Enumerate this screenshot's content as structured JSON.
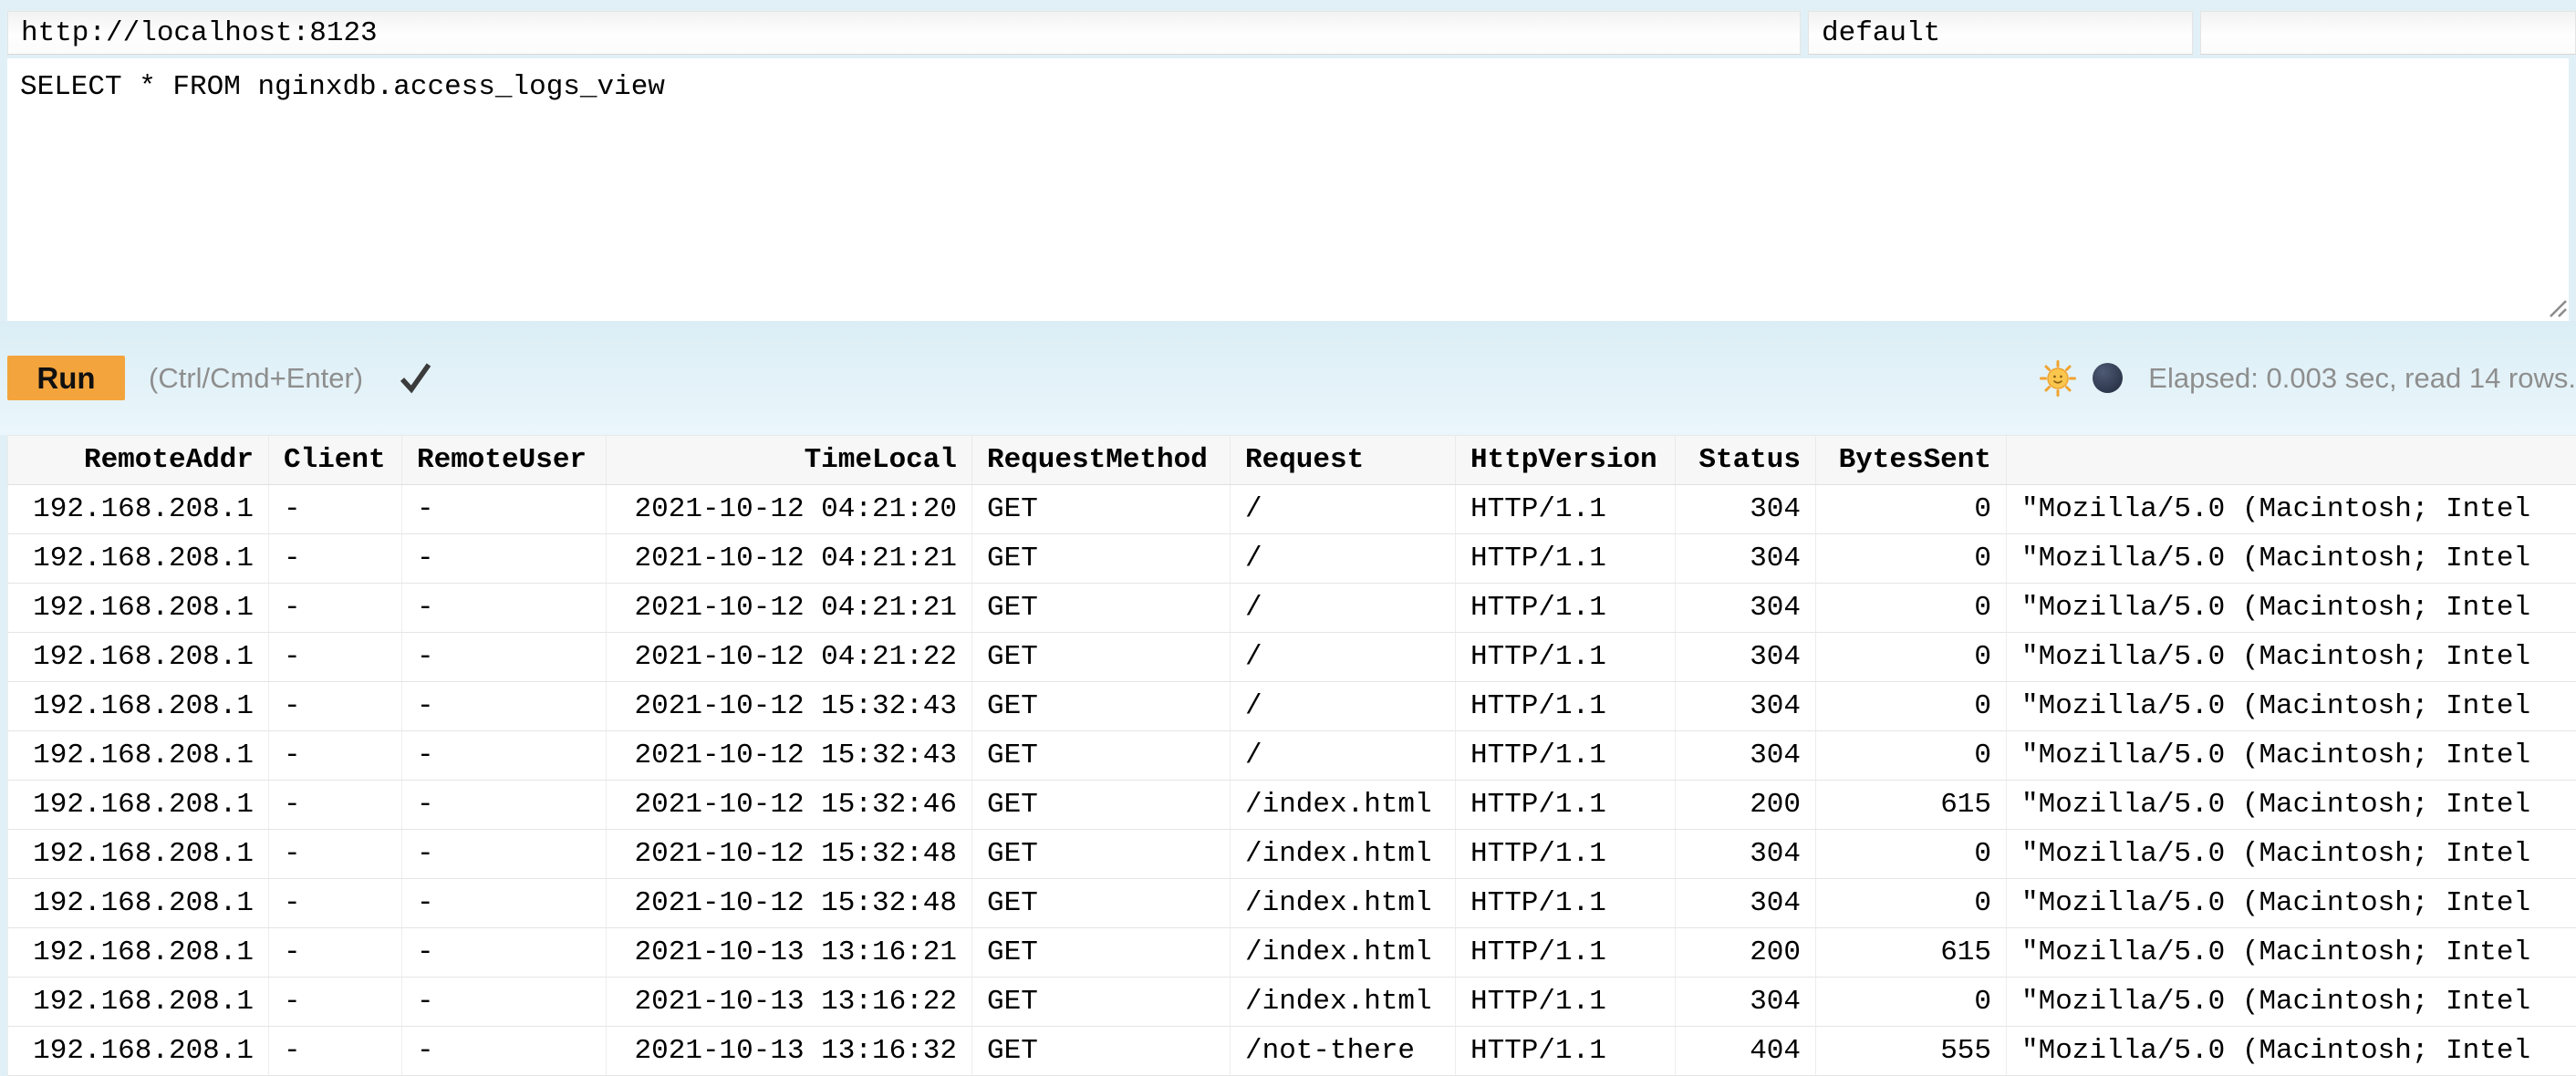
{
  "connection": {
    "url": "http://localhost:8123",
    "user": "default",
    "password": ""
  },
  "query": "SELECT * FROM nginxdb.access_logs_view",
  "run_bar": {
    "run_label": "Run",
    "shortcut_hint": "(Ctrl/Cmd+Enter)",
    "status_icon": "check-mark",
    "stats_text": "Elapsed: 0.003 sec, read 14 rows.",
    "theme_icons": {
      "light": "sun-with-face-emoji",
      "dark": "new-moon-emoji"
    }
  },
  "colors": {
    "page_background": "#E1F0F6",
    "run_button": "#F3A43C",
    "muted_text": "#8E8E8E",
    "table_header_bg": "#F7F7F7",
    "check_mark": "#3B3B3B"
  },
  "results_table": {
    "columns": [
      {
        "label": "RemoteAddr",
        "align": "right"
      },
      {
        "label": "Client",
        "align": "left"
      },
      {
        "label": "RemoteUser",
        "align": "left"
      },
      {
        "label": "TimeLocal",
        "align": "right"
      },
      {
        "label": "RequestMethod",
        "align": "left"
      },
      {
        "label": "Request",
        "align": "left"
      },
      {
        "label": "HttpVersion",
        "align": "left"
      },
      {
        "label": "Status",
        "align": "right"
      },
      {
        "label": "BytesSent",
        "align": "right"
      },
      {
        "label": "",
        "align": "left"
      }
    ],
    "rows": [
      [
        "192.168.208.1",
        "-",
        "-",
        "2021-10-12 04:21:20",
        "GET",
        "/",
        "HTTP/1.1",
        "304",
        "0",
        "\"Mozilla/5.0 (Macintosh; Intel"
      ],
      [
        "192.168.208.1",
        "-",
        "-",
        "2021-10-12 04:21:21",
        "GET",
        "/",
        "HTTP/1.1",
        "304",
        "0",
        "\"Mozilla/5.0 (Macintosh; Intel"
      ],
      [
        "192.168.208.1",
        "-",
        "-",
        "2021-10-12 04:21:21",
        "GET",
        "/",
        "HTTP/1.1",
        "304",
        "0",
        "\"Mozilla/5.0 (Macintosh; Intel"
      ],
      [
        "192.168.208.1",
        "-",
        "-",
        "2021-10-12 04:21:22",
        "GET",
        "/",
        "HTTP/1.1",
        "304",
        "0",
        "\"Mozilla/5.0 (Macintosh; Intel"
      ],
      [
        "192.168.208.1",
        "-",
        "-",
        "2021-10-12 15:32:43",
        "GET",
        "/",
        "HTTP/1.1",
        "304",
        "0",
        "\"Mozilla/5.0 (Macintosh; Intel"
      ],
      [
        "192.168.208.1",
        "-",
        "-",
        "2021-10-12 15:32:43",
        "GET",
        "/",
        "HTTP/1.1",
        "304",
        "0",
        "\"Mozilla/5.0 (Macintosh; Intel"
      ],
      [
        "192.168.208.1",
        "-",
        "-",
        "2021-10-12 15:32:46",
        "GET",
        "/index.html",
        "HTTP/1.1",
        "200",
        "615",
        "\"Mozilla/5.0 (Macintosh; Intel"
      ],
      [
        "192.168.208.1",
        "-",
        "-",
        "2021-10-12 15:32:48",
        "GET",
        "/index.html",
        "HTTP/1.1",
        "304",
        "0",
        "\"Mozilla/5.0 (Macintosh; Intel"
      ],
      [
        "192.168.208.1",
        "-",
        "-",
        "2021-10-12 15:32:48",
        "GET",
        "/index.html",
        "HTTP/1.1",
        "304",
        "0",
        "\"Mozilla/5.0 (Macintosh; Intel"
      ],
      [
        "192.168.208.1",
        "-",
        "-",
        "2021-10-13 13:16:21",
        "GET",
        "/index.html",
        "HTTP/1.1",
        "200",
        "615",
        "\"Mozilla/5.0 (Macintosh; Intel"
      ],
      [
        "192.168.208.1",
        "-",
        "-",
        "2021-10-13 13:16:22",
        "GET",
        "/index.html",
        "HTTP/1.1",
        "304",
        "0",
        "\"Mozilla/5.0 (Macintosh; Intel"
      ],
      [
        "192.168.208.1",
        "-",
        "-",
        "2021-10-13 13:16:32",
        "GET",
        "/not-there",
        "HTTP/1.1",
        "404",
        "555",
        "\"Mozilla/5.0 (Macintosh; Intel"
      ]
    ]
  }
}
